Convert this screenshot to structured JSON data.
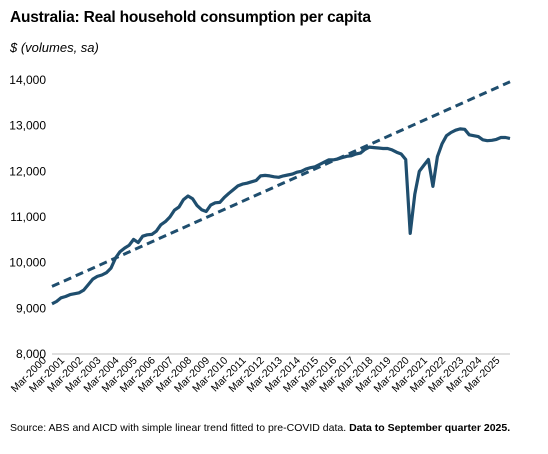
{
  "chart_data": {
    "type": "line",
    "title": "Australia: Real household consumption per capita",
    "subtitle": "$ (volumes, sa)",
    "xlabel": "",
    "ylabel": "",
    "ylim": [
      8000,
      14000
    ],
    "yticks": [
      "8,000",
      "9,000",
      "10,000",
      "11,000",
      "12,000",
      "13,000",
      "14,000"
    ],
    "ytick_values": [
      8000,
      9000,
      10000,
      11000,
      12000,
      13000,
      14000
    ],
    "xlim": [
      2000.5,
      2025.75
    ],
    "xtick_labels": [
      "Mar-2000",
      "Mar-2001",
      "Mar-2002",
      "Mar-2003",
      "Mar-2004",
      "Mar-2005",
      "Mar-2006",
      "Mar-2007",
      "Mar-2008",
      "Mar-2009",
      "Mar-2010",
      "Mar-2011",
      "Mar-2012",
      "Mar-2013",
      "Mar-2014",
      "Mar-2015",
      "Mar-2016",
      "Mar-2017",
      "Mar-2018",
      "Mar-2019",
      "Mar-2020",
      "Mar-2021",
      "Mar-2022",
      "Mar-2023",
      "Mar-2024",
      "Mar-2025"
    ],
    "grid": false,
    "legend": "none",
    "series": [
      {
        "style": "solid",
        "color": "#1f4e6e",
        "x": [
          2000.5,
          2000.75,
          2001.0,
          2001.25,
          2001.5,
          2001.75,
          2002.0,
          2002.25,
          2002.5,
          2002.75,
          2003.0,
          2003.25,
          2003.5,
          2003.75,
          2004.0,
          2004.25,
          2004.5,
          2004.75,
          2005.0,
          2005.25,
          2005.5,
          2005.75,
          2006.0,
          2006.25,
          2006.5,
          2006.75,
          2007.0,
          2007.25,
          2007.5,
          2007.75,
          2008.0,
          2008.25,
          2008.5,
          2008.75,
          2009.0,
          2009.25,
          2009.5,
          2009.75,
          2010.0,
          2010.25,
          2010.5,
          2010.75,
          2011.0,
          2011.25,
          2011.5,
          2011.75,
          2012.0,
          2012.25,
          2012.5,
          2012.75,
          2013.0,
          2013.25,
          2013.5,
          2013.75,
          2014.0,
          2014.25,
          2014.5,
          2014.75,
          2015.0,
          2015.25,
          2015.5,
          2015.75,
          2016.0,
          2016.25,
          2016.5,
          2016.75,
          2017.0,
          2017.25,
          2017.5,
          2017.75,
          2018.0,
          2018.25,
          2018.5,
          2018.75,
          2019.0,
          2019.25,
          2019.5,
          2019.75,
          2020.0,
          2020.25,
          2020.5,
          2020.75,
          2021.0,
          2021.25,
          2021.5,
          2021.75,
          2022.0,
          2022.25,
          2022.5,
          2022.75,
          2023.0,
          2023.25,
          2023.5,
          2023.75,
          2024.0,
          2024.25,
          2024.5,
          2024.75,
          2025.0,
          2025.25,
          2025.5,
          2025.75
        ],
        "values": [
          9100,
          9150,
          9230,
          9260,
          9300,
          9320,
          9340,
          9400,
          9520,
          9640,
          9700,
          9730,
          9780,
          9880,
          10100,
          10240,
          10320,
          10380,
          10510,
          10440,
          10580,
          10610,
          10620,
          10690,
          10830,
          10900,
          11000,
          11150,
          11220,
          11380,
          11460,
          11400,
          11250,
          11160,
          11120,
          11260,
          11310,
          11320,
          11430,
          11520,
          11600,
          11680,
          11720,
          11740,
          11770,
          11800,
          11900,
          11910,
          11900,
          11880,
          11870,
          11900,
          11920,
          11940,
          11980,
          12000,
          12050,
          12080,
          12100,
          12150,
          12200,
          12250,
          12250,
          12270,
          12300,
          12330,
          12340,
          12380,
          12400,
          12480,
          12530,
          12520,
          12510,
          12500,
          12500,
          12470,
          12420,
          12380,
          12260,
          10640,
          11500,
          12000,
          12130,
          12260,
          11670,
          12320,
          12600,
          12780,
          12850,
          12900,
          12930,
          12920,
          12800,
          12780,
          12760,
          12690,
          12670,
          12680,
          12700,
          12740,
          12740,
          12720
        ]
      },
      {
        "style": "dashed",
        "color": "#1f4e6e",
        "x": [
          2000.5,
          2025.75
        ],
        "values": [
          9480,
          13960
        ]
      }
    ]
  },
  "source": {
    "text": "Source: ABS and AICD with simple linear trend fitted to pre-COVID data. ",
    "bold": "Data to September quarter 2025."
  }
}
